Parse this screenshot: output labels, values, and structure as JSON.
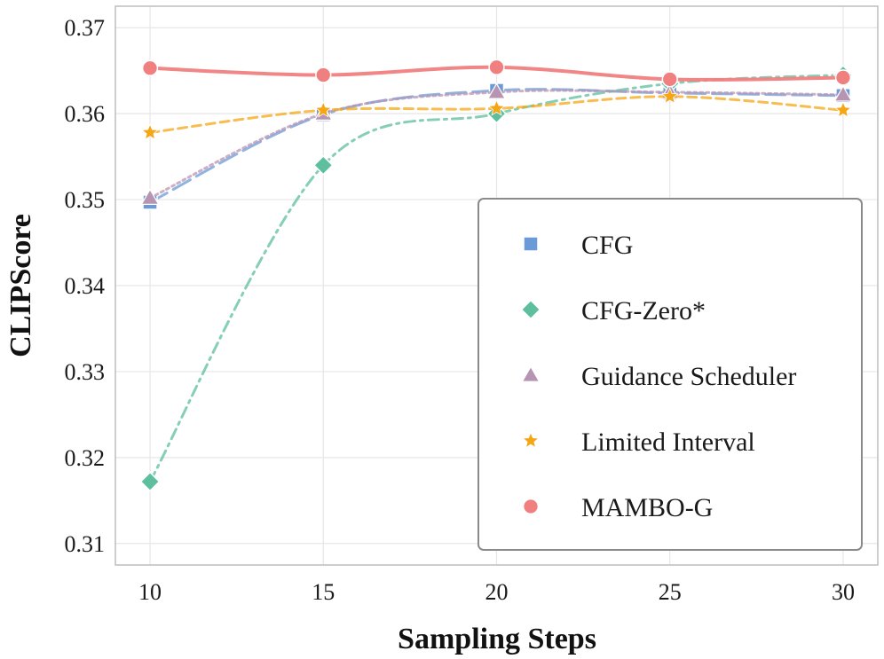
{
  "chart_data": {
    "type": "line",
    "title": "",
    "xlabel": "Sampling Steps",
    "ylabel": "CLIPScore",
    "x": [
      10,
      15,
      20,
      25,
      30
    ],
    "xlim": [
      9,
      31
    ],
    "ylim": [
      0.3075,
      0.3725
    ],
    "xticks": [
      10,
      15,
      20,
      25,
      30
    ],
    "xtick_labels": [
      "10",
      "15",
      "20",
      "25",
      "30"
    ],
    "yticks": [
      0.31,
      0.32,
      0.33,
      0.34,
      0.35,
      0.36,
      0.37
    ],
    "ytick_labels": [
      "0.31",
      "0.32",
      "0.33",
      "0.34",
      "0.35",
      "0.36",
      "0.37"
    ],
    "grid": true,
    "legend_position": "center-right",
    "series": [
      {
        "name": "CFG",
        "values": [
          0.3497,
          0.3599,
          0.3627,
          0.3624,
          0.3621
        ],
        "color": "#6a9bd8",
        "marker": "square",
        "line_style": "long-dash"
      },
      {
        "name": "CFG-Zero*",
        "values": [
          0.3172,
          0.354,
          0.36,
          0.3635,
          0.3645
        ],
        "color": "#5dbf9e",
        "marker": "diamond",
        "line_style": "dash-dot"
      },
      {
        "name": "Guidance Scheduler",
        "values": [
          0.3502,
          0.36,
          0.3625,
          0.3625,
          0.3622
        ],
        "color": "#b894b3",
        "marker": "triangle",
        "line_style": "dotted"
      },
      {
        "name": "Limited Interval",
        "values": [
          0.3578,
          0.3604,
          0.3606,
          0.362,
          0.3604
        ],
        "color": "#f5a614",
        "marker": "star",
        "line_style": "dashed"
      },
      {
        "name": "MAMBO-G",
        "values": [
          0.3653,
          0.3645,
          0.3654,
          0.364,
          0.3642
        ],
        "color": "#f08080",
        "marker": "circle",
        "line_style": "solid"
      }
    ]
  }
}
